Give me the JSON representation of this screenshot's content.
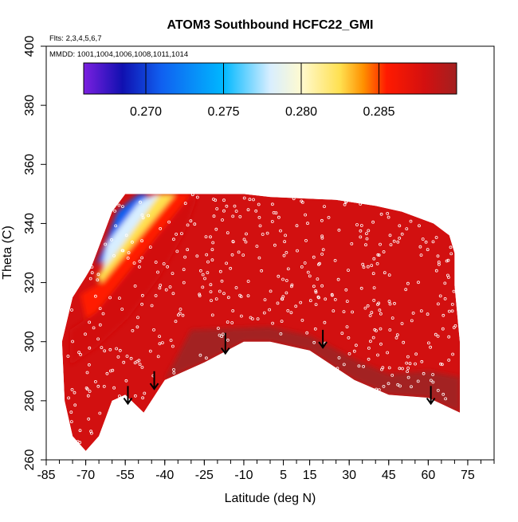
{
  "chart_data": {
    "type": "heatmap",
    "title": "ATOM3 Southbound HCFC22_GMI",
    "annotations": {
      "flights": "Flts: 2,3,4,5,6,7",
      "dates": "MMDD: 1001,1004,1006,1008,1011,1014"
    },
    "xlabel": "Latitude (deg N)",
    "ylabel": "Theta (C)",
    "xlim": [
      -85,
      85
    ],
    "ylim": [
      260,
      400
    ],
    "x_tick_labels": [
      "-85",
      "-70",
      "-55",
      "-40",
      "-25",
      "-10",
      "5",
      "15",
      "30",
      "45",
      "60",
      "75"
    ],
    "x_tick_values": [
      -85,
      -70,
      -55,
      -40,
      -25,
      -10,
      5,
      15,
      30,
      45,
      60,
      75
    ],
    "y_tick_labels": [
      "260",
      "280",
      "300",
      "320",
      "340",
      "360",
      "380",
      "400"
    ],
    "y_tick_values": [
      260,
      280,
      300,
      320,
      340,
      360,
      380,
      400
    ],
    "colorbar": {
      "range": [
        0.266,
        0.29
      ],
      "tick_labels": [
        "0.270",
        "0.275",
        "0.280",
        "0.285"
      ],
      "tick_values": [
        0.27,
        0.275,
        0.28,
        0.285
      ],
      "stops": [
        {
          "v": 0.266,
          "color": "#7b20e0"
        },
        {
          "v": 0.2685,
          "color": "#1010b0"
        },
        {
          "v": 0.271,
          "color": "#1060f0"
        },
        {
          "v": 0.275,
          "color": "#00b8ff"
        },
        {
          "v": 0.278,
          "color": "#d8eeff"
        },
        {
          "v": 0.28,
          "color": "#fffad0"
        },
        {
          "v": 0.2825,
          "color": "#ffe050"
        },
        {
          "v": 0.284,
          "color": "#ff9000"
        },
        {
          "v": 0.2855,
          "color": "#ff1a00"
        },
        {
          "v": 0.288,
          "color": "#d21010"
        },
        {
          "v": 0.29,
          "color": "#a32020"
        }
      ]
    },
    "field": {
      "top_edge": [
        [
          -68,
          325
        ],
        [
          -60,
          344
        ],
        [
          -55,
          350
        ],
        [
          -50,
          350
        ],
        [
          -10,
          350
        ],
        [
          0,
          349
        ],
        [
          25,
          348
        ],
        [
          40,
          346
        ],
        [
          50,
          344
        ],
        [
          62,
          340
        ],
        [
          68,
          336
        ],
        [
          70,
          330
        ],
        [
          70,
          318
        ]
      ],
      "bottom_edge": [
        [
          70,
          319
        ],
        [
          72,
          300
        ],
        [
          72,
          276
        ],
        [
          60,
          281
        ],
        [
          45,
          282
        ],
        [
          32,
          287
        ],
        [
          15,
          297
        ],
        [
          0,
          300
        ],
        [
          -10,
          300
        ],
        [
          -25,
          293
        ],
        [
          -40,
          287
        ],
        [
          -48,
          276
        ],
        [
          -55,
          282
        ],
        [
          -60,
          280
        ],
        [
          -65,
          268
        ],
        [
          -70,
          263
        ],
        [
          -75,
          268
        ],
        [
          -78,
          280
        ],
        [
          -79,
          300
        ],
        [
          -75,
          315
        ],
        [
          -70,
          322
        ]
      ]
    },
    "regions": [
      {
        "name": "low-blue",
        "points": [
          [
            -58,
            344
          ],
          [
            -50,
            350
          ],
          [
            -46,
            350
          ],
          [
            -50,
            343
          ],
          [
            -56,
            336
          ],
          [
            -62,
            328
          ],
          [
            -66,
            326
          ]
        ],
        "value": 0.2695
      },
      {
        "name": "light-blue",
        "points": [
          [
            -62,
            333
          ],
          [
            -56,
            340
          ],
          [
            -50,
            347
          ],
          [
            -44,
            350
          ],
          [
            -40,
            350
          ],
          [
            -45,
            342
          ],
          [
            -52,
            334
          ],
          [
            -58,
            326
          ],
          [
            -64,
            324
          ]
        ],
        "value": 0.2775
      },
      {
        "name": "yellow",
        "points": [
          [
            -42,
            350
          ],
          [
            -36,
            350
          ],
          [
            -42,
            340
          ],
          [
            -50,
            330
          ],
          [
            -56,
            322
          ],
          [
            -62,
            318
          ],
          [
            -66,
            322
          ],
          [
            -60,
            328
          ]
        ],
        "value": 0.282
      },
      {
        "name": "orange",
        "points": [
          [
            -36,
            350
          ],
          [
            -30,
            350
          ],
          [
            -36,
            338
          ],
          [
            -44,
            326
          ],
          [
            -54,
            316
          ],
          [
            -62,
            310
          ],
          [
            -70,
            308
          ],
          [
            -72,
            316
          ],
          [
            -64,
            320
          ]
        ],
        "value": 0.2842
      },
      {
        "name": "red-orange",
        "points": [
          [
            -30,
            350
          ],
          [
            -28,
            348
          ],
          [
            -33,
            336
          ],
          [
            -42,
            322
          ],
          [
            -54,
            308
          ],
          [
            -66,
            298
          ],
          [
            -76,
            292
          ],
          [
            -76,
            304
          ],
          [
            -66,
            310
          ]
        ],
        "value": 0.2857
      },
      {
        "name": "dark-bottom",
        "points": [
          [
            -30,
            304
          ],
          [
            0,
            305
          ],
          [
            15,
            302
          ],
          [
            32,
            294
          ],
          [
            45,
            289
          ],
          [
            60,
            290
          ],
          [
            72,
            288
          ],
          [
            72,
            276
          ],
          [
            60,
            281
          ],
          [
            45,
            282
          ],
          [
            32,
            287
          ],
          [
            15,
            297
          ],
          [
            0,
            300
          ],
          [
            -10,
            300
          ],
          [
            -25,
            293
          ],
          [
            -40,
            287
          ]
        ],
        "value": 0.2895
      }
    ],
    "field_value": 0.288,
    "arrows": [
      {
        "x": -54,
        "y_top": 285,
        "y_tip": 279
      },
      {
        "x": -44,
        "y_top": 290,
        "y_tip": 284
      },
      {
        "x": -17,
        "y_top": 303,
        "y_tip": 296
      },
      {
        "x": 20,
        "y_top": 304,
        "y_tip": 298
      },
      {
        "x": 61,
        "y_top": 285,
        "y_tip": 279
      }
    ],
    "sample_points": {
      "count": 460,
      "seed": 17,
      "color": "#ffffff"
    }
  }
}
